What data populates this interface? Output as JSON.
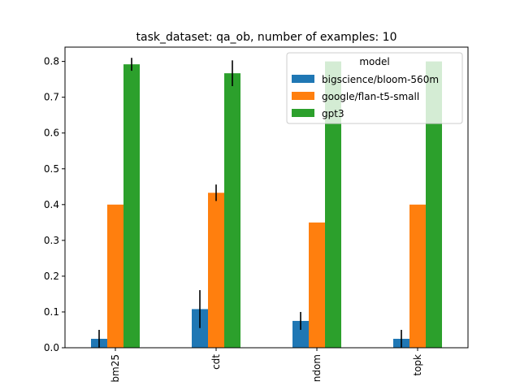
{
  "chart_data": {
    "type": "bar",
    "title": "task_dataset: qa_ob, number of examples: 10",
    "xlabel": "",
    "ylabel": "",
    "ylim": [
      0,
      0.84
    ],
    "yticks": [
      0.0,
      0.1,
      0.2,
      0.3,
      0.4,
      0.5,
      0.6,
      0.7,
      0.8
    ],
    "ytick_labels": [
      "0.0",
      "0.1",
      "0.2",
      "0.3",
      "0.4",
      "0.5",
      "0.6",
      "0.7",
      "0.8"
    ],
    "categories": [
      "bm25",
      "cdt",
      "ndom",
      "topk"
    ],
    "legend": {
      "title": "model",
      "placement": "top-right"
    },
    "grid": false,
    "series": [
      {
        "name": "bigscience/bloom-560m",
        "color": "#1f77b4",
        "values": [
          0.025,
          0.108,
          0.075,
          0.025
        ],
        "errors": [
          0.025,
          0.053,
          0.025,
          0.025
        ]
      },
      {
        "name": "google/flan-t5-small",
        "color": "#ff7f0e",
        "values": [
          0.4,
          0.433,
          0.35,
          0.4
        ],
        "errors": [
          0.0,
          0.023,
          0.0,
          0.0
        ]
      },
      {
        "name": "gpt3",
        "color": "#2ca02c",
        "values": [
          0.792,
          0.767,
          0.8,
          0.8
        ],
        "errors": [
          0.018,
          0.036,
          0.0,
          0.0
        ]
      }
    ]
  }
}
